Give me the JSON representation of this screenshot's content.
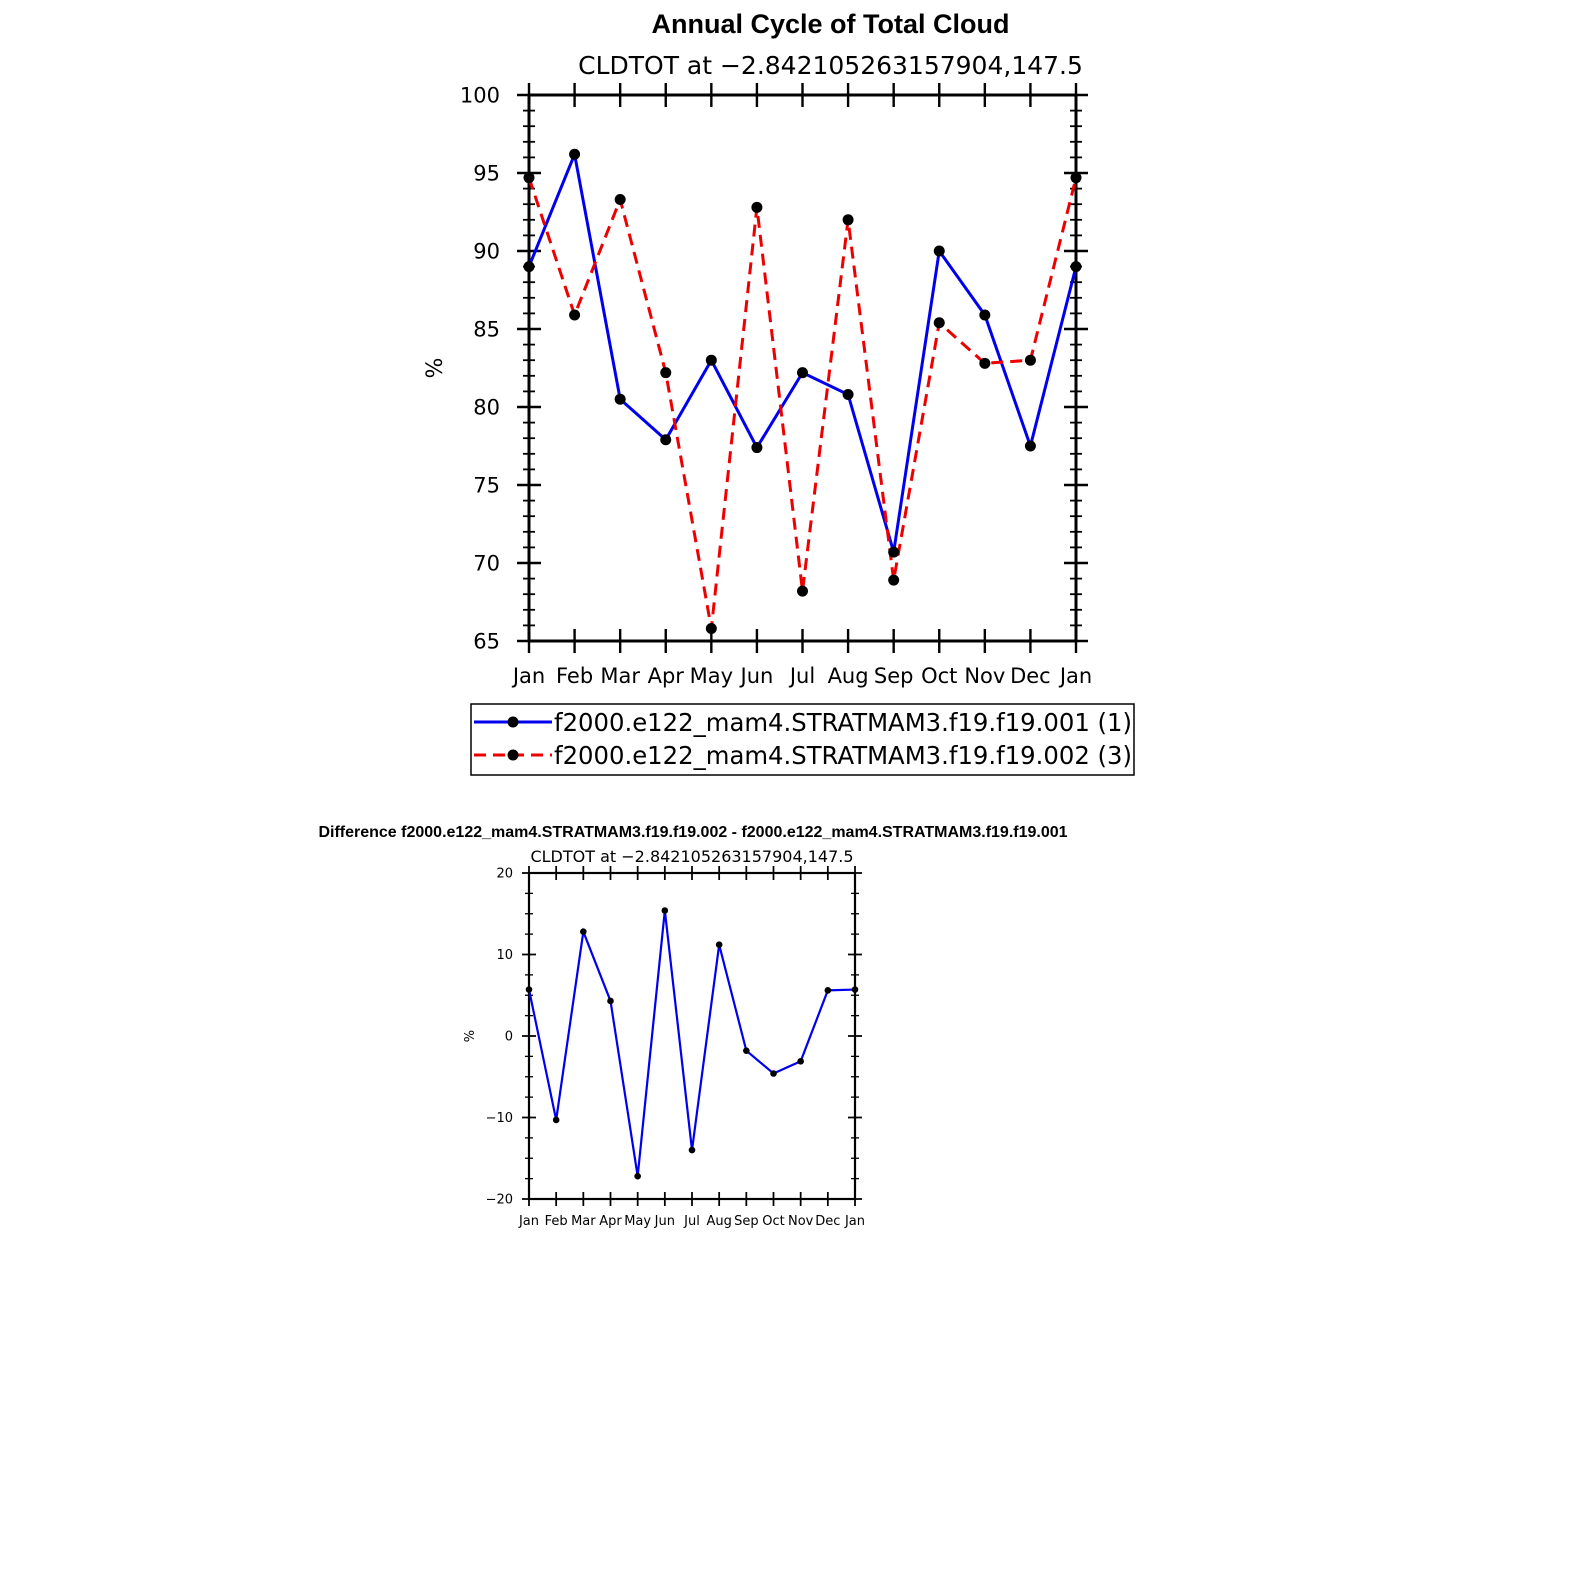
{
  "chart_data": [
    {
      "type": "line",
      "title": "Annual Cycle of Total Cloud",
      "subtitle": "CLDTOT at −2.842105263157904,147.5",
      "xlabel": "",
      "ylabel": "%",
      "categories": [
        "Jan",
        "Feb",
        "Mar",
        "Apr",
        "May",
        "Jun",
        "Jul",
        "Aug",
        "Sep",
        "Oct",
        "Nov",
        "Dec",
        "Jan"
      ],
      "ylim": [
        65,
        100
      ],
      "yticks": [
        65,
        70,
        75,
        80,
        85,
        90,
        95,
        100
      ],
      "legend_position": "bottom",
      "series": [
        {
          "name": "f2000.e122_mam4.STRATMAM3.f19.f19.001 (1)",
          "color": "#0000ee",
          "style": "solid",
          "values": [
            89.0,
            96.2,
            80.5,
            77.9,
            83.0,
            77.4,
            82.2,
            80.8,
            70.7,
            90.0,
            85.9,
            77.5,
            89.0
          ]
        },
        {
          "name": "f2000.e122_mam4.STRATMAM3.f19.f19.002 (3)",
          "color": "#ee0000",
          "style": "dashed",
          "values": [
            94.7,
            85.9,
            93.3,
            82.2,
            65.8,
            92.8,
            68.2,
            92.0,
            68.9,
            85.4,
            82.8,
            83.0,
            94.7
          ]
        }
      ]
    },
    {
      "type": "line",
      "title": "Difference f2000.e122_mam4.STRATMAM3.f19.f19.002 - f2000.e122_mam4.STRATMAM3.f19.f19.001",
      "subtitle": "CLDTOT at −2.842105263157904,147.5",
      "xlabel": "",
      "ylabel": "%",
      "categories": [
        "Jan",
        "Feb",
        "Mar",
        "Apr",
        "May",
        "Jun",
        "Jul",
        "Aug",
        "Sep",
        "Oct",
        "Nov",
        "Dec",
        "Jan"
      ],
      "ylim": [
        -20,
        20
      ],
      "yticks": [
        -20,
        -10,
        0,
        10,
        20
      ],
      "ytick_labels": [
        "−20",
        "−10",
        "0",
        "10",
        "20"
      ],
      "series": [
        {
          "name": "difference",
          "color": "#0000ee",
          "style": "solid",
          "values": [
            5.7,
            -10.3,
            12.8,
            4.3,
            -17.2,
            15.4,
            -14.0,
            11.2,
            -1.8,
            -4.6,
            -3.1,
            5.6,
            5.7
          ]
        }
      ]
    }
  ]
}
